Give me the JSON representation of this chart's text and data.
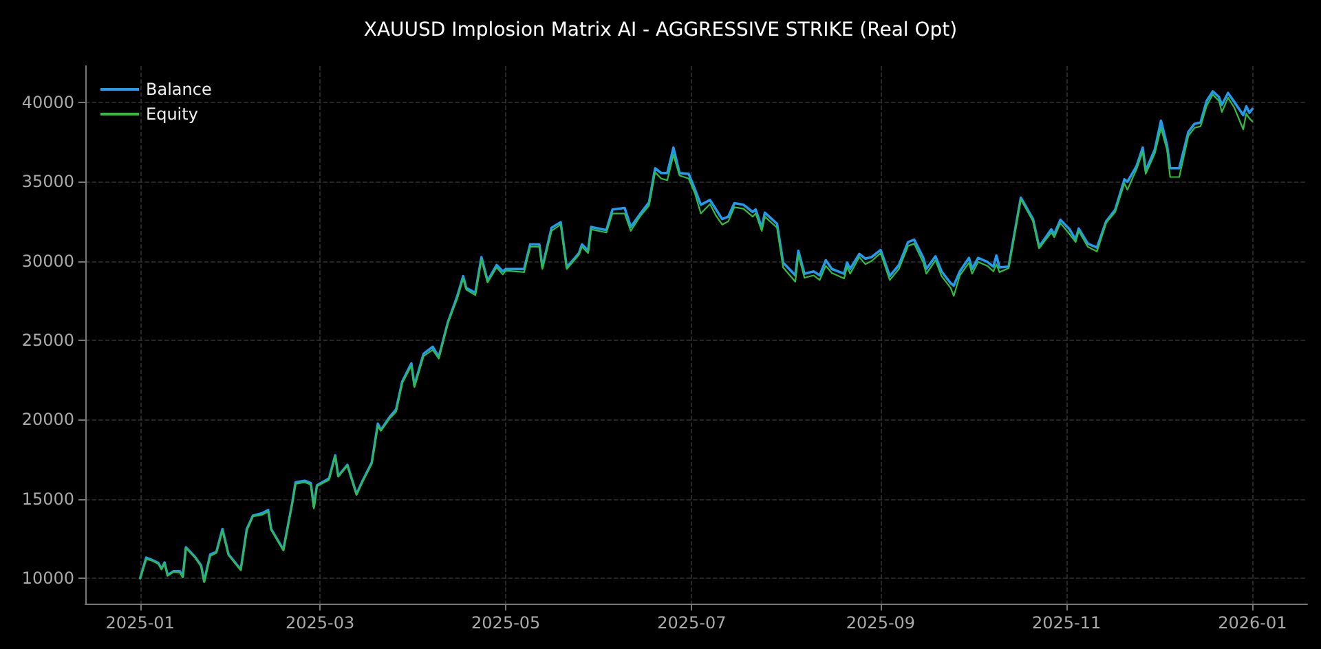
{
  "chart_data": {
    "type": "line",
    "title": "XAUUSD Implosion Matrix AI - AGGRESSIVE STRIKE (Real Opt)",
    "x": [
      "2025-01-01",
      "2025-01-03",
      "2025-01-05",
      "2025-01-07",
      "2025-01-08",
      "2025-01-09",
      "2025-01-10",
      "2025-01-12",
      "2025-01-14",
      "2025-01-15",
      "2025-01-16",
      "2025-01-19",
      "2025-01-21",
      "2025-01-22",
      "2025-01-24",
      "2025-01-26",
      "2025-01-28",
      "2025-01-30",
      "2025-02-03",
      "2025-02-05",
      "2025-02-07",
      "2025-02-10",
      "2025-02-12",
      "2025-02-13",
      "2025-02-17",
      "2025-02-20",
      "2025-02-21",
      "2025-02-24",
      "2025-02-26",
      "2025-02-27",
      "2025-02-28",
      "2025-03-04",
      "2025-03-06",
      "2025-03-07",
      "2025-03-10",
      "2025-03-13",
      "2025-03-15",
      "2025-03-18",
      "2025-03-20",
      "2025-03-21",
      "2025-03-24",
      "2025-03-26",
      "2025-03-28",
      "2025-03-31",
      "2025-04-01",
      "2025-04-04",
      "2025-04-07",
      "2025-04-09",
      "2025-04-12",
      "2025-04-15",
      "2025-04-17",
      "2025-04-18",
      "2025-04-21",
      "2025-04-23",
      "2025-04-25",
      "2025-04-28",
      "2025-04-30",
      "2025-05-01",
      "2025-05-07",
      "2025-05-09",
      "2025-05-12",
      "2025-05-13",
      "2025-05-16",
      "2025-05-19",
      "2025-05-21",
      "2025-05-25",
      "2025-05-26",
      "2025-05-28",
      "2025-05-29",
      "2025-06-03",
      "2025-06-05",
      "2025-06-09",
      "2025-06-11",
      "2025-06-14",
      "2025-06-17",
      "2025-06-19",
      "2025-06-21",
      "2025-06-23",
      "2025-06-25",
      "2025-06-27",
      "2025-06-30",
      "2025-07-02",
      "2025-07-04",
      "2025-07-07",
      "2025-07-09",
      "2025-07-11",
      "2025-07-13",
      "2025-07-15",
      "2025-07-18",
      "2025-07-21",
      "2025-07-22",
      "2025-07-24",
      "2025-07-25",
      "2025-07-29",
      "2025-07-31",
      "2025-08-04",
      "2025-08-05",
      "2025-08-07",
      "2025-08-10",
      "2025-08-12",
      "2025-08-14",
      "2025-08-16",
      "2025-08-20",
      "2025-08-21",
      "2025-08-22",
      "2025-08-25",
      "2025-08-27",
      "2025-08-29",
      "2025-09-01",
      "2025-09-04",
      "2025-09-07",
      "2025-09-10",
      "2025-09-12",
      "2025-09-15",
      "2025-09-16",
      "2025-09-19",
      "2025-09-21",
      "2025-09-24",
      "2025-09-25",
      "2025-09-27",
      "2025-09-30",
      "2025-10-01",
      "2025-10-03",
      "2025-10-06",
      "2025-10-08",
      "2025-10-09",
      "2025-10-10",
      "2025-10-13",
      "2025-10-17",
      "2025-10-21",
      "2025-10-23",
      "2025-10-27",
      "2025-10-28",
      "2025-10-30",
      "2025-11-02",
      "2025-11-04",
      "2025-11-05",
      "2025-11-08",
      "2025-11-11",
      "2025-11-14",
      "2025-11-17",
      "2025-11-20",
      "2025-11-21",
      "2025-11-24",
      "2025-11-26",
      "2025-11-27",
      "2025-11-30",
      "2025-12-02",
      "2025-12-04",
      "2025-12-05",
      "2025-12-08",
      "2025-12-11",
      "2025-12-13",
      "2025-12-15",
      "2025-12-17",
      "2025-12-19",
      "2025-12-21",
      "2025-12-22",
      "2025-12-24",
      "2025-12-26",
      "2025-12-29",
      "2025-12-30",
      "2025-12-31",
      "2026-01-01"
    ],
    "series": [
      {
        "name": "Balance",
        "color": "#1f9bf0",
        "values": [
          10000,
          11300,
          11150,
          10950,
          10600,
          11000,
          10200,
          10450,
          10450,
          10100,
          11950,
          11350,
          10800,
          9800,
          11500,
          11650,
          13100,
          11500,
          10550,
          13100,
          13950,
          14100,
          14300,
          13100,
          11800,
          14850,
          16050,
          16150,
          16000,
          14500,
          15850,
          16300,
          17750,
          16450,
          17150,
          15300,
          16150,
          17300,
          19750,
          19350,
          20200,
          20650,
          22400,
          23550,
          22150,
          24150,
          24600,
          23950,
          26150,
          27750,
          29050,
          28300,
          28000,
          30250,
          28750,
          29750,
          29350,
          29500,
          29500,
          31050,
          31050,
          29600,
          32100,
          32450,
          29600,
          30500,
          31050,
          30650,
          32150,
          31950,
          33250,
          33350,
          32150,
          32950,
          33700,
          35850,
          35550,
          35550,
          37150,
          35550,
          35500,
          34550,
          33550,
          33850,
          33250,
          32650,
          32800,
          33650,
          33550,
          33100,
          33250,
          32100,
          33050,
          32350,
          29900,
          29100,
          30650,
          29200,
          29350,
          29100,
          30050,
          29500,
          29200,
          29900,
          29500,
          30450,
          30150,
          30250,
          30700,
          29050,
          29750,
          31200,
          31350,
          30200,
          29500,
          30300,
          29350,
          28600,
          28450,
          29350,
          30200,
          29500,
          30200,
          29950,
          29650,
          30350,
          29600,
          29650,
          34000,
          32650,
          30900,
          32000,
          31700,
          32600,
          32000,
          31350,
          32050,
          31100,
          30850,
          32500,
          33250,
          35150,
          35000,
          36000,
          37150,
          35700,
          37050,
          38850,
          37300,
          35850,
          35850,
          38150,
          38650,
          38750,
          40100,
          40700,
          40350,
          39850,
          40600,
          40050,
          39200,
          39750,
          39350,
          39600
        ]
      },
      {
        "name": "Equity",
        "color": "#2fbf3a",
        "values": [
          10000,
          11200,
          11100,
          10900,
          10550,
          10950,
          10150,
          10400,
          10350,
          10050,
          11900,
          11300,
          10750,
          9750,
          11400,
          11600,
          13000,
          11450,
          10500,
          13000,
          13900,
          14000,
          14200,
          13050,
          11750,
          14800,
          15950,
          16050,
          15900,
          14400,
          15800,
          16200,
          17700,
          16400,
          17100,
          15250,
          16100,
          17200,
          19600,
          19300,
          20100,
          20500,
          22300,
          23400,
          22050,
          24000,
          24400,
          23850,
          26100,
          27600,
          28900,
          28200,
          27850,
          30100,
          28650,
          29600,
          29150,
          29400,
          29300,
          30900,
          30900,
          29500,
          31900,
          32300,
          29500,
          30400,
          30900,
          30500,
          32000,
          31800,
          33000,
          33000,
          31900,
          32800,
          33500,
          35600,
          35200,
          35100,
          36700,
          35400,
          35200,
          34300,
          33000,
          33600,
          32850,
          32300,
          32500,
          33400,
          33300,
          32800,
          33000,
          31900,
          32800,
          32100,
          29600,
          28700,
          30400,
          28950,
          29100,
          28800,
          29700,
          29250,
          28900,
          29650,
          29200,
          30250,
          29800,
          30000,
          30500,
          28800,
          29500,
          30950,
          31100,
          29900,
          29200,
          30050,
          29050,
          28300,
          27800,
          29100,
          29900,
          29200,
          29950,
          29700,
          29350,
          29800,
          29300,
          29550,
          33900,
          32500,
          30800,
          31800,
          31500,
          32400,
          31700,
          31200,
          31900,
          30900,
          30600,
          32400,
          33100,
          34900,
          34500,
          35800,
          36900,
          35500,
          36800,
          38400,
          37000,
          35300,
          35300,
          37900,
          38400,
          38500,
          39800,
          40500,
          40100,
          39400,
          40300,
          39700,
          38300,
          39300,
          39000,
          38800
        ]
      }
    ],
    "xlim": [
      "2024-12-14",
      "2026-01-19"
    ],
    "xticks": [
      "2025-01",
      "2025-03",
      "2025-05",
      "2025-07",
      "2025-09",
      "2025-11",
      "2026-01"
    ],
    "ylim": [
      8400,
      42300
    ],
    "yticks": [
      10000,
      15000,
      20000,
      25000,
      30000,
      35000,
      40000
    ],
    "grid": true,
    "legend": "top left",
    "marker": "none",
    "line_style": "solid"
  }
}
